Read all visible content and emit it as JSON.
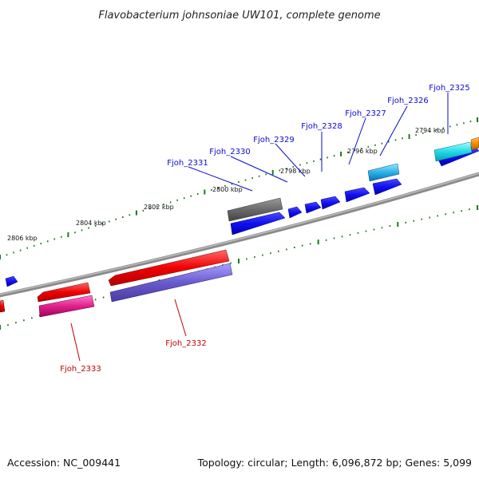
{
  "title": "Flavobacterium johnsoniae UW101, complete genome",
  "footer": {
    "accession": "Accession: NC_009441",
    "summary": "Topology: circular; Length: 6,096,872 bp; Genes: 5,099"
  },
  "ticks": [
    "2794 kbp",
    "2796 kbp",
    "2798 kbp",
    "2800 kbp",
    "2802 kbp",
    "2804 kbp",
    "2806 kbp"
  ],
  "gene_labels": {
    "fjoh_2325": "Fjoh_2325",
    "fjoh_2326": "Fjoh_2326",
    "fjoh_2327": "Fjoh_2327",
    "fjoh_2328": "Fjoh_2328",
    "fjoh_2329": "Fjoh_2329",
    "fjoh_2330": "Fjoh_2330",
    "fjoh_2331": "Fjoh_2331",
    "fjoh_2332": "Fjoh_2332",
    "fjoh_2333": "Fjoh_2333"
  },
  "colors": {
    "forward_label": "#0a0ad0",
    "reverse_label": "#c00000",
    "backbone": "#8a8a8a",
    "tick": "#1a7a1a"
  }
}
